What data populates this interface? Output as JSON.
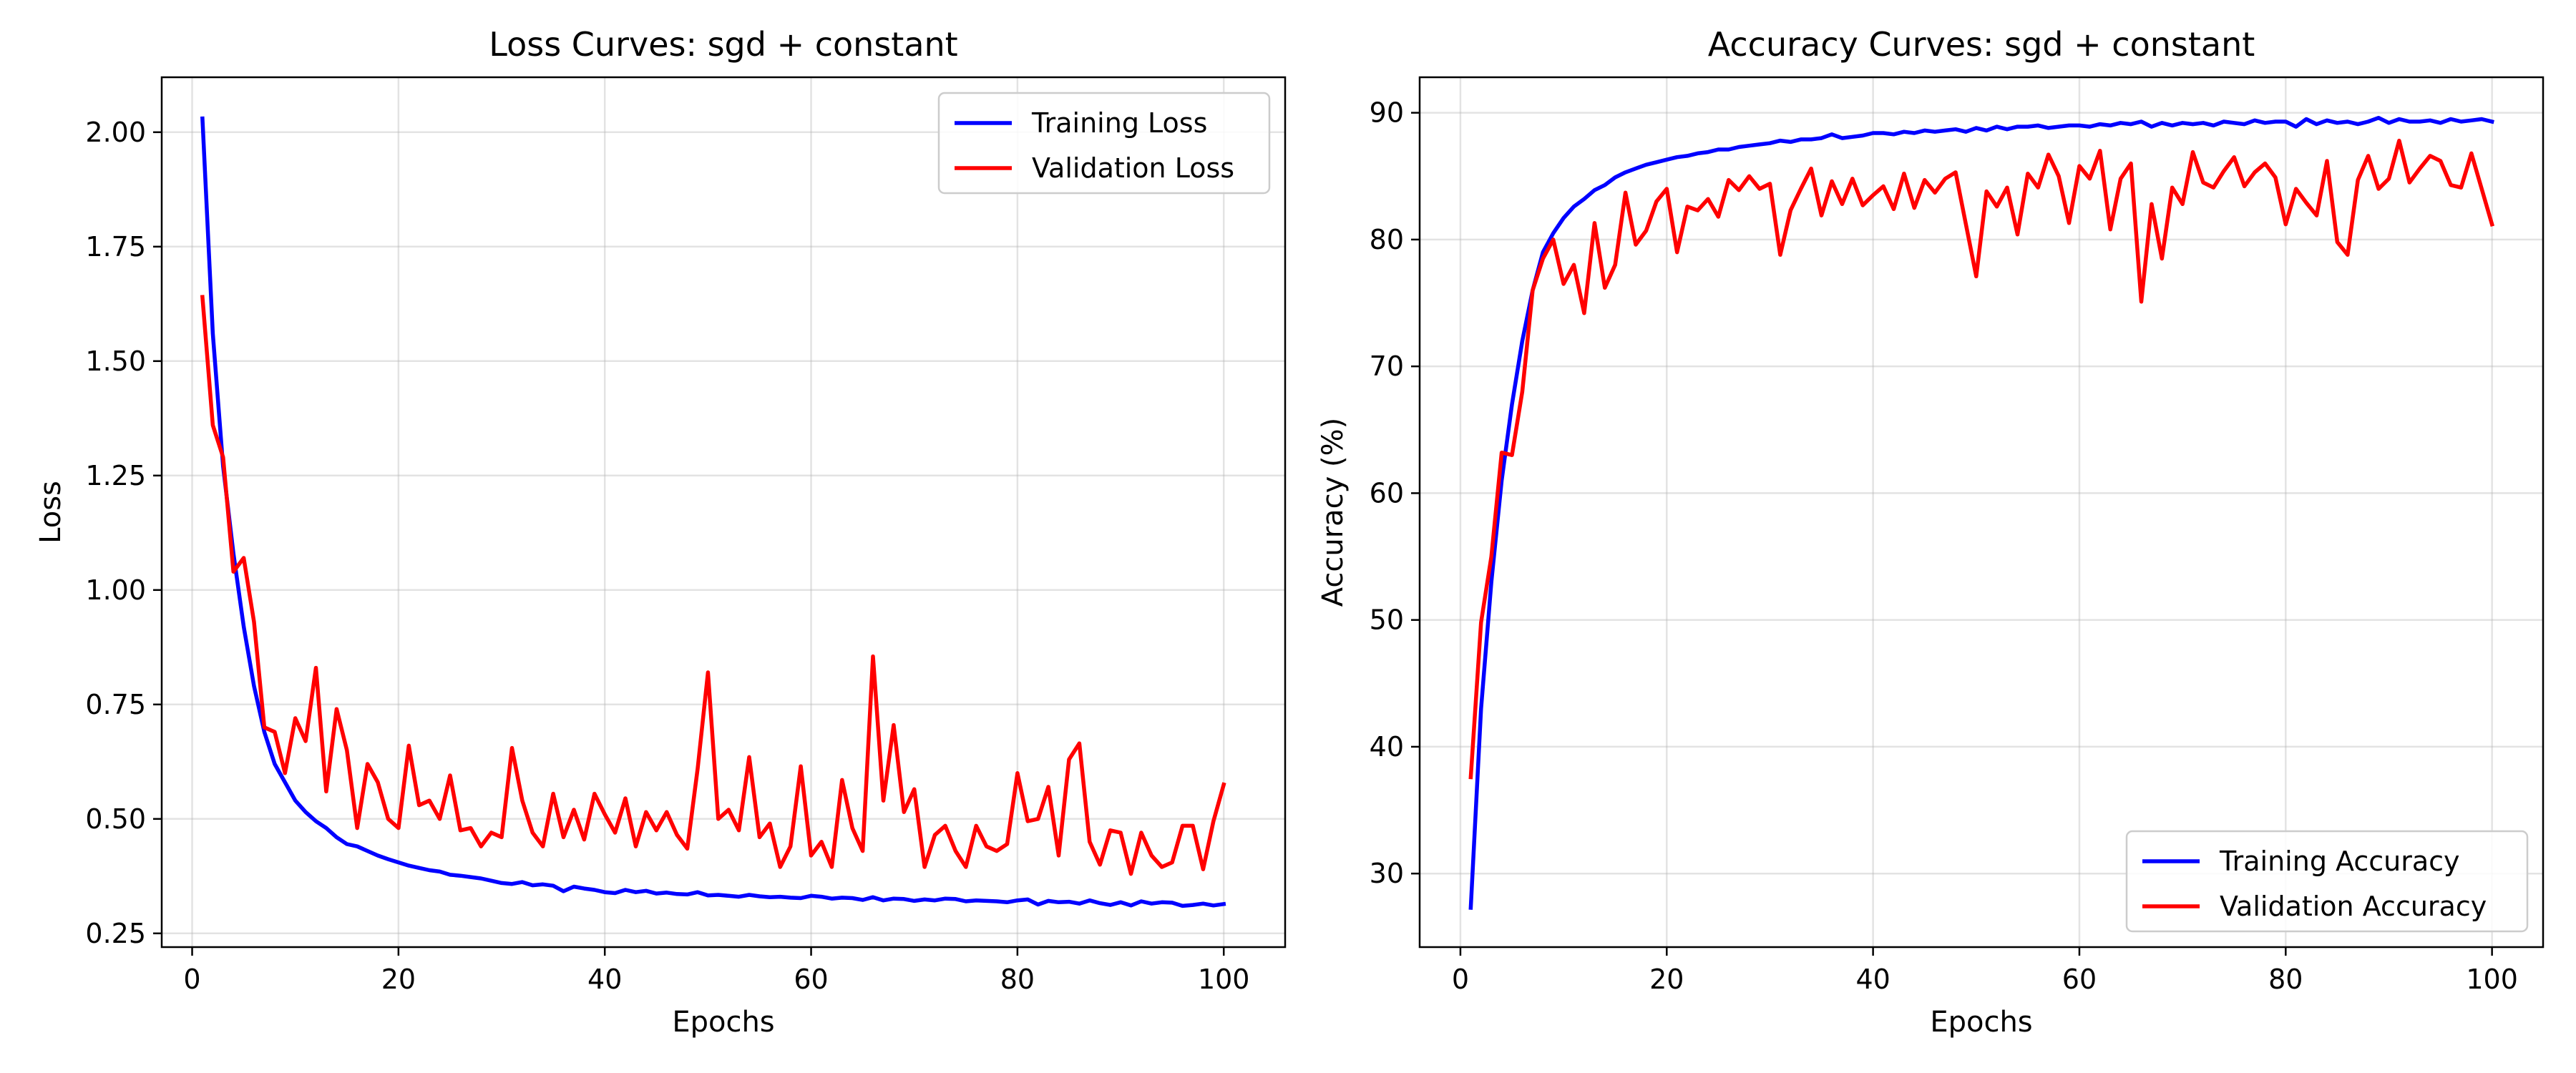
{
  "chart_data": [
    {
      "type": "line",
      "title": "Loss Curves: sgd + constant",
      "xlabel": "Epochs",
      "ylabel": "Loss",
      "xlim": [
        -2.95,
        105.95
      ],
      "ylim": [
        0.22,
        2.12
      ],
      "xticks": [
        0,
        20,
        40,
        60,
        80,
        100
      ],
      "xtick_labels": [
        "0",
        "20",
        "40",
        "60",
        "80",
        "100"
      ],
      "yticks": [
        0.25,
        0.5,
        0.75,
        1.0,
        1.25,
        1.5,
        1.75,
        2.0
      ],
      "ytick_labels": [
        "0.25",
        "0.50",
        "0.75",
        "1.00",
        "1.25",
        "1.50",
        "1.75",
        "2.00"
      ],
      "grid": true,
      "legend": "top-right",
      "x": [
        1,
        2,
        3,
        4,
        5,
        6,
        7,
        8,
        9,
        10,
        11,
        12,
        13,
        14,
        15,
        16,
        17,
        18,
        19,
        20,
        21,
        22,
        23,
        24,
        25,
        26,
        27,
        28,
        29,
        30,
        31,
        32,
        33,
        34,
        35,
        36,
        37,
        38,
        39,
        40,
        41,
        42,
        43,
        44,
        45,
        46,
        47,
        48,
        49,
        50,
        51,
        52,
        53,
        54,
        55,
        56,
        57,
        58,
        59,
        60,
        61,
        62,
        63,
        64,
        65,
        66,
        67,
        68,
        69,
        70,
        71,
        72,
        73,
        74,
        75,
        76,
        77,
        78,
        79,
        80,
        81,
        82,
        83,
        84,
        85,
        86,
        87,
        88,
        89,
        90,
        91,
        92,
        93,
        94,
        95,
        96,
        97,
        98,
        99,
        100
      ],
      "series": [
        {
          "name": "Training Loss",
          "color": "#0000ff",
          "values": [
            2.03,
            1.56,
            1.27,
            1.08,
            0.92,
            0.79,
            0.69,
            0.62,
            0.58,
            0.54,
            0.515,
            0.495,
            0.48,
            0.46,
            0.445,
            0.44,
            0.43,
            0.42,
            0.412,
            0.405,
            0.398,
            0.393,
            0.388,
            0.385,
            0.378,
            0.376,
            0.373,
            0.37,
            0.365,
            0.36,
            0.358,
            0.362,
            0.355,
            0.357,
            0.354,
            0.342,
            0.352,
            0.348,
            0.345,
            0.34,
            0.338,
            0.345,
            0.34,
            0.343,
            0.337,
            0.339,
            0.336,
            0.335,
            0.34,
            0.333,
            0.334,
            0.332,
            0.33,
            0.334,
            0.331,
            0.329,
            0.33,
            0.328,
            0.327,
            0.332,
            0.33,
            0.326,
            0.328,
            0.327,
            0.323,
            0.329,
            0.322,
            0.326,
            0.325,
            0.321,
            0.324,
            0.322,
            0.326,
            0.325,
            0.32,
            0.322,
            0.321,
            0.32,
            0.318,
            0.322,
            0.324,
            0.313,
            0.321,
            0.318,
            0.319,
            0.315,
            0.322,
            0.316,
            0.312,
            0.318,
            0.311,
            0.32,
            0.315,
            0.318,
            0.317,
            0.31,
            0.312,
            0.315,
            0.311,
            0.314
          ]
        },
        {
          "name": "Validation Loss",
          "color": "#ff0000",
          "values": [
            1.64,
            1.36,
            1.29,
            1.04,
            1.07,
            0.93,
            0.7,
            0.69,
            0.6,
            0.72,
            0.67,
            0.83,
            0.56,
            0.74,
            0.65,
            0.48,
            0.62,
            0.58,
            0.5,
            0.48,
            0.66,
            0.53,
            0.54,
            0.5,
            0.595,
            0.475,
            0.48,
            0.44,
            0.47,
            0.46,
            0.655,
            0.54,
            0.47,
            0.44,
            0.555,
            0.46,
            0.52,
            0.455,
            0.555,
            0.51,
            0.47,
            0.545,
            0.44,
            0.515,
            0.475,
            0.515,
            0.465,
            0.435,
            0.61,
            0.82,
            0.5,
            0.52,
            0.475,
            0.635,
            0.46,
            0.49,
            0.395,
            0.44,
            0.615,
            0.42,
            0.45,
            0.395,
            0.585,
            0.48,
            0.43,
            0.855,
            0.54,
            0.705,
            0.515,
            0.565,
            0.395,
            0.465,
            0.485,
            0.43,
            0.395,
            0.485,
            0.44,
            0.43,
            0.445,
            0.6,
            0.495,
            0.5,
            0.57,
            0.42,
            0.63,
            0.665,
            0.45,
            0.4,
            0.475,
            0.47,
            0.38,
            0.47,
            0.42,
            0.395,
            0.405,
            0.485,
            0.485,
            0.39,
            0.495,
            0.575
          ]
        }
      ]
    },
    {
      "type": "line",
      "title": "Accuracy Curves: sgd + constant",
      "xlabel": "Epochs",
      "ylabel": "Accuracy (%)",
      "xlim": [
        -3.95,
        104.95
      ],
      "ylim": [
        24.2,
        92.8
      ],
      "xticks": [
        0,
        20,
        40,
        60,
        80,
        100
      ],
      "xtick_labels": [
        "0",
        "20",
        "40",
        "60",
        "80",
        "100"
      ],
      "yticks": [
        30,
        40,
        50,
        60,
        70,
        80,
        90
      ],
      "ytick_labels": [
        "30",
        "40",
        "50",
        "60",
        "70",
        "80",
        "90"
      ],
      "grid": true,
      "legend": "bottom-right",
      "x": [
        1,
        2,
        3,
        4,
        5,
        6,
        7,
        8,
        9,
        10,
        11,
        12,
        13,
        14,
        15,
        16,
        17,
        18,
        19,
        20,
        21,
        22,
        23,
        24,
        25,
        26,
        27,
        28,
        29,
        30,
        31,
        32,
        33,
        34,
        35,
        36,
        37,
        38,
        39,
        40,
        41,
        42,
        43,
        44,
        45,
        46,
        47,
        48,
        49,
        50,
        51,
        52,
        53,
        54,
        55,
        56,
        57,
        58,
        59,
        60,
        61,
        62,
        63,
        64,
        65,
        66,
        67,
        68,
        69,
        70,
        71,
        72,
        73,
        74,
        75,
        76,
        77,
        78,
        79,
        80,
        81,
        82,
        83,
        84,
        85,
        86,
        87,
        88,
        89,
        90,
        91,
        92,
        93,
        94,
        95,
        96,
        97,
        98,
        99,
        100
      ],
      "series": [
        {
          "name": "Training Accuracy",
          "color": "#0000ff",
          "values": [
            27.3,
            43,
            53,
            61,
            67,
            72,
            76,
            79,
            80.5,
            81.7,
            82.6,
            83.2,
            83.9,
            84.3,
            84.9,
            85.3,
            85.6,
            85.9,
            86.1,
            86.3,
            86.5,
            86.6,
            86.8,
            86.9,
            87.1,
            87.1,
            87.3,
            87.4,
            87.5,
            87.6,
            87.8,
            87.7,
            87.9,
            87.9,
            88,
            88.3,
            88,
            88.1,
            88.2,
            88.4,
            88.4,
            88.3,
            88.5,
            88.4,
            88.6,
            88.5,
            88.6,
            88.7,
            88.5,
            88.8,
            88.6,
            88.9,
            88.7,
            88.9,
            88.9,
            89,
            88.8,
            88.9,
            89,
            89,
            88.9,
            89.1,
            89,
            89.2,
            89.1,
            89.3,
            88.9,
            89.2,
            89,
            89.2,
            89.1,
            89.2,
            89,
            89.3,
            89.2,
            89.1,
            89.4,
            89.2,
            89.3,
            89.3,
            88.9,
            89.5,
            89.1,
            89.4,
            89.2,
            89.3,
            89.1,
            89.3,
            89.6,
            89.2,
            89.5,
            89.3,
            89.3,
            89.4,
            89.2,
            89.5,
            89.3,
            89.4,
            89.5,
            89.3
          ]
        },
        {
          "name": "Validation Accuracy",
          "color": "#ff0000",
          "values": [
            37.6,
            49.8,
            55,
            63.2,
            63,
            68,
            76,
            78.5,
            80,
            76.5,
            78,
            74.2,
            81.3,
            76.2,
            78,
            83.7,
            79.6,
            80.7,
            83,
            84,
            79,
            82.6,
            82.3,
            83.2,
            81.8,
            84.7,
            83.9,
            85,
            84,
            84.4,
            78.8,
            82.3,
            84,
            85.6,
            81.9,
            84.6,
            82.8,
            84.8,
            82.7,
            83.5,
            84.2,
            82.4,
            85.2,
            82.5,
            84.7,
            83.7,
            84.8,
            85.3,
            81.2,
            77.1,
            83.8,
            82.6,
            84.1,
            80.4,
            85.2,
            84.1,
            86.7,
            85,
            81.3,
            85.8,
            84.8,
            87,
            80.8,
            84.8,
            86,
            75.1,
            82.8,
            78.5,
            84.1,
            82.8,
            86.9,
            84.5,
            84.1,
            85.4,
            86.5,
            84.2,
            85.3,
            86,
            84.9,
            81.2,
            84,
            82.9,
            81.9,
            86.2,
            79.8,
            78.8,
            84.7,
            86.6,
            84,
            84.8,
            87.8,
            84.5,
            85.6,
            86.6,
            86.2,
            84.3,
            84.1,
            86.8,
            84,
            81.2
          ]
        }
      ]
    }
  ]
}
